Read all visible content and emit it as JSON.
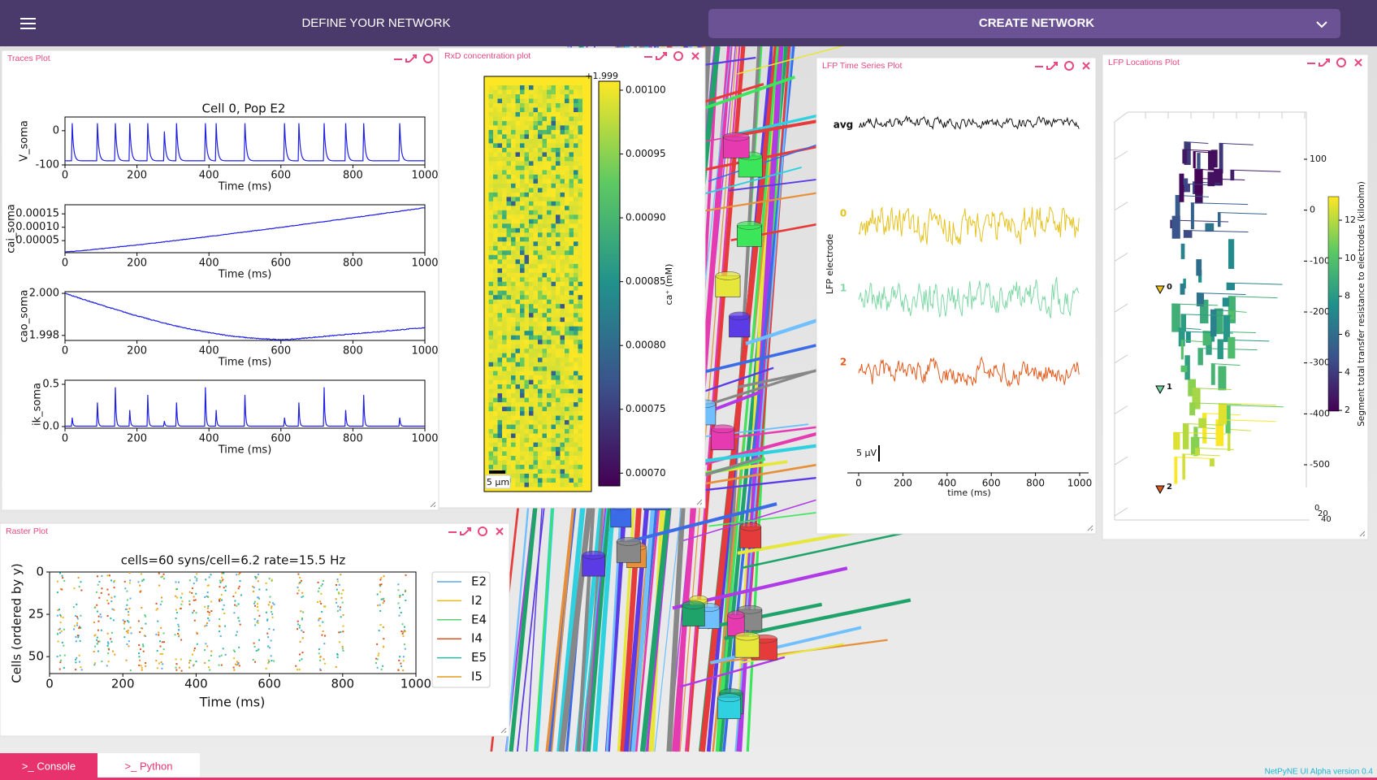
{
  "header": {
    "menu_title": "DEFINE YOUR NETWORK",
    "action_title": "CREATE NETWORK"
  },
  "traces_plot": {
    "panel_title": "Traces Plot",
    "title": "Cell 0, Pop E2",
    "xlabel": "Time (ms)",
    "xlim": [
      0,
      1000
    ],
    "xticks": [
      0,
      200,
      400,
      600,
      800,
      1000
    ],
    "subplots": [
      {
        "ylabel": "V_soma",
        "ylim": [
          -100,
          40
        ],
        "yticks": [
          0,
          -100
        ]
      },
      {
        "ylabel": "cai_soma",
        "ylim": [
          5e-06,
          0.000184
        ],
        "yticks": [
          {
            "value": 0.00015,
            "label": "0.00015"
          },
          {
            "value": 0.0001,
            "label": "0.00010"
          },
          {
            "value": 5e-05,
            "label": "0.00005"
          }
        ]
      },
      {
        "ylabel": "cao_soma",
        "ylim": [
          1.99776,
          2.00008
        ],
        "yticks": [
          {
            "value": 2,
            "label": "2.000"
          },
          {
            "value": 1.998,
            "label": "1.998"
          }
        ]
      },
      {
        "ylabel": "ik_soma",
        "ylim": [
          -0.019,
          0.548
        ],
        "yticks": [
          {
            "value": 0.5,
            "label": "0.5"
          },
          {
            "value": 0,
            "label": "0.0"
          }
        ]
      }
    ]
  },
  "rxd_plot": {
    "panel_title": "RxD concentration plot",
    "offset_label": "+1.999",
    "clabel": "ca⁺ (mM)",
    "clim": [
      0.00069,
      0.001007
    ],
    "cticks": [
      {
        "value": 0.001,
        "label": "0.00100"
      },
      {
        "value": 0.00095,
        "label": "0.00095"
      },
      {
        "value": 0.0009,
        "label": "0.00090"
      },
      {
        "value": 0.00085,
        "label": "0.00085"
      },
      {
        "value": 0.0008,
        "label": "0.00080"
      },
      {
        "value": 0.00075,
        "label": "0.00075"
      },
      {
        "value": 0.0007,
        "label": "0.00070"
      }
    ],
    "scalebar": "5 μm"
  },
  "lfp_timeseries": {
    "panel_title": "LFP Time Series Plot",
    "ylabel": "LFP electrode",
    "channels": [
      {
        "name": "avg",
        "color": "#111111"
      },
      {
        "name": "0",
        "color": "#e6c21e"
      },
      {
        "name": "1",
        "color": "#7fd8a6"
      },
      {
        "name": "2",
        "color": "#e25a1c"
      }
    ],
    "scalebar": "5 μV",
    "xlabel": "time (ms)",
    "xlim": [
      0,
      1000
    ],
    "xticks": [
      0,
      200,
      400,
      600,
      800,
      1000
    ]
  },
  "lfp_locations": {
    "panel_title": "LFP Locations Plot",
    "ylim": [
      -500,
      100
    ],
    "yticks": [
      100,
      0,
      -100,
      -200,
      -300,
      -400,
      -500
    ],
    "clim": [
      1.96,
      13.24
    ],
    "cticks": [
      2,
      4,
      6,
      8,
      10,
      12
    ],
    "clabel": "Segment total transfer resistance to electrodes (kiloohm)",
    "electrodes": [
      {
        "label": "0",
        "color": "#f0c419"
      },
      {
        "label": "1",
        "color": "#6fd39a"
      },
      {
        "label": "2",
        "color": "#e2581c"
      }
    ],
    "depth_ticks": [
      0,
      20,
      40
    ]
  },
  "raster_plot": {
    "panel_title": "Raster Plot",
    "title": "cells=60 syns/cell=6.2 rate=15.5 Hz",
    "xlabel": "Time (ms)",
    "ylabel": "Cells (ordered by y)",
    "xlim": [
      0,
      1000
    ],
    "xticks": [
      0,
      200,
      400,
      600,
      800,
      1000
    ],
    "ylim": [
      0,
      60
    ],
    "yticks": [
      0,
      25,
      50
    ],
    "populations": [
      {
        "name": "E2",
        "color": "#5aa9e6"
      },
      {
        "name": "I2",
        "color": "#e6b91e"
      },
      {
        "name": "E4",
        "color": "#5ccf7a"
      },
      {
        "name": "I4",
        "color": "#d9541e"
      },
      {
        "name": "E5",
        "color": "#2cb5a8"
      },
      {
        "name": "I5",
        "color": "#e69a1e"
      }
    ]
  },
  "footer": {
    "console_tab": ">_ Console",
    "python_tab": ">_ Python",
    "version": "NetPyNE UI Alpha version 0.4"
  }
}
